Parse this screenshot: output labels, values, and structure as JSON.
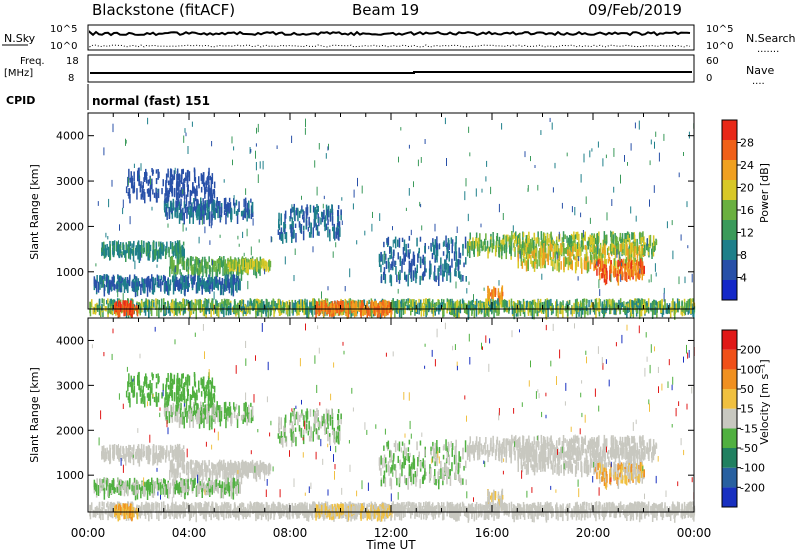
{
  "header": {
    "station": "Blackstone (fitACF)",
    "beam": "Beam 19",
    "date": "09/Feb/2019"
  },
  "sky_panel": {
    "left_label": "N.Sky",
    "right_label": "N.Search",
    "left_ticks": [
      "10^5",
      "10^0"
    ],
    "right_ticks": [
      "10^5",
      "10^0"
    ],
    "right_dots": "......."
  },
  "freq_panel": {
    "label_line1": "Freq.",
    "label_line2": "[MHz]",
    "left_ticks": [
      "18",
      "8"
    ],
    "right_label": "Nave",
    "right_ticks": [
      "60",
      "0"
    ],
    "right_dots": "...."
  },
  "cpid_panel": {
    "label": "CPID",
    "text": "normal (fast) 151"
  },
  "chart_data": [
    {
      "type": "heatmap",
      "panel": "power",
      "ylabel": "Slant Range [km]",
      "yticks": [
        "4000",
        "3000",
        "2000",
        "1000"
      ],
      "x_ticks": [
        "00:00",
        "04:00",
        "08:00",
        "12:00",
        "16:00",
        "20:00",
        "00:00"
      ],
      "colorbar": {
        "label": "Power [dB]",
        "ticks": [
          "28",
          "24",
          "20",
          "16",
          "12",
          "8",
          "4"
        ],
        "colors": [
          "#1428c8",
          "#2850a8",
          "#1e7f8a",
          "#3a9a5a",
          "#6ab040",
          "#d8c828",
          "#f0a020",
          "#f06018",
          "#e82818"
        ]
      }
    },
    {
      "type": "heatmap",
      "panel": "velocity",
      "ylabel": "Slant Range [km]",
      "yticks": [
        "4000",
        "3000",
        "2000",
        "1000"
      ],
      "x_ticks": [
        "00:00",
        "04:00",
        "08:00",
        "12:00",
        "16:00",
        "20:00",
        "00:00"
      ],
      "xlabel": "Time UT",
      "colorbar": {
        "label": "Velocity [m s⁻¹]",
        "ticks": [
          "200",
          "100",
          "50",
          "15",
          "-15",
          "-50",
          "-100",
          "-200"
        ],
        "colors": [
          "#1830c0",
          "#2860a0",
          "#208060",
          "#50b040",
          "#c8c8c0",
          "#f0c040",
          "#f09020",
          "#f05018",
          "#e01818"
        ]
      }
    }
  ]
}
